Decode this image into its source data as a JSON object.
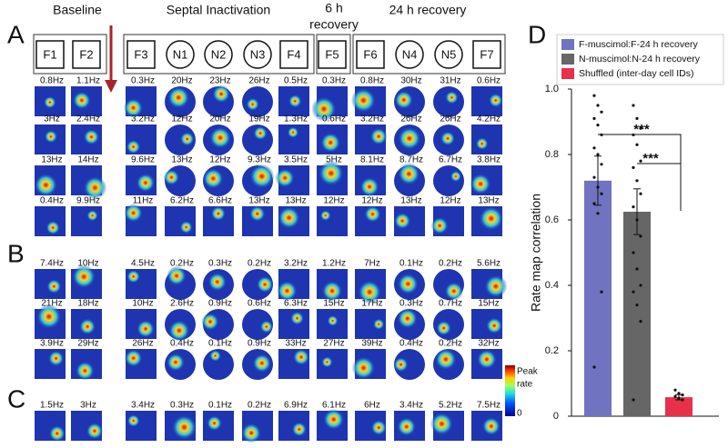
{
  "figure": {
    "panel_labels": [
      "A",
      "B",
      "C"
    ],
    "groups": [
      {
        "label_lines": [
          "Baseline"
        ]
      },
      {
        "label_lines": [
          "Septal Inactivation"
        ]
      },
      {
        "label_lines": [
          "6 h",
          "recovery"
        ]
      },
      {
        "label_lines": [
          "24 h recovery"
        ]
      }
    ],
    "sessions": [
      "F1",
      "F2",
      "F3",
      "N1",
      "N2",
      "N3",
      "F4",
      "F5",
      "F6",
      "N4",
      "N5",
      "F7"
    ],
    "rate_labels": [
      [
        "0.8Hz",
        "1.1Hz",
        "0.3Hz",
        "20Hz",
        "23Hz",
        "26Hz",
        "0.5Hz",
        "0.3Hz",
        "0.8Hz",
        "30Hz",
        "31Hz",
        "0.6Hz"
      ],
      [
        "3Hz",
        "2.4Hz",
        "3.2Hz",
        "12Hz",
        "20Hz",
        "19Hz",
        "1.3Hz",
        "0.6Hz",
        "3.2Hz",
        "26Hz",
        "26Hz",
        "4.2Hz"
      ],
      [
        "13Hz",
        "14Hz",
        "9.6Hz",
        "13Hz",
        "12Hz",
        "9.3Hz",
        "3.5Hz",
        "5Hz",
        "8.1Hz",
        "8.7Hz",
        "6.7Hz",
        "3.8Hz"
      ],
      [
        "0.4Hz",
        "9.9Hz",
        "11Hz",
        "6.2Hz",
        "6.6Hz",
        "13Hz",
        "13Hz",
        "12Hz",
        "12Hz",
        "13Hz",
        "12Hz",
        "13Hz"
      ],
      [
        "7.4Hz",
        "10Hz",
        "4.5Hz",
        "0.2Hz",
        "0.3Hz",
        "0.2Hz",
        "3.2Hz",
        "1.2Hz",
        "7Hz",
        "0.1Hz",
        "0.2Hz",
        "5.6Hz"
      ],
      [
        "21Hz",
        "18Hz",
        "10Hz",
        "2.6Hz",
        "0.9Hz",
        "0.6Hz",
        "6.3Hz",
        "15Hz",
        "17Hz",
        "0.3Hz",
        "0.7Hz",
        "15Hz"
      ],
      [
        "3.9Hz",
        "29Hz",
        "26Hz",
        "0.4Hz",
        "0.1Hz",
        "0.9Hz",
        "33Hz",
        "27Hz",
        "39Hz",
        "0.4Hz",
        "0.2Hz",
        "32Hz"
      ],
      [
        "1.5Hz",
        "3Hz",
        "3.4Hz",
        "0.3Hz",
        "0.1Hz",
        "0.2Hz",
        "6.9Hz",
        "6.1Hz",
        "6Hz",
        "3.4Hz",
        "5.2Hz",
        "7.5Hz"
      ]
    ],
    "colorbar": {
      "top_lines": [
        "Peak",
        "rate"
      ],
      "bottom": "0"
    }
  },
  "chart_data": {
    "type": "bar",
    "panel_label": "D",
    "y_label": "Rate map correlation",
    "ylim": [
      0,
      1
    ],
    "yticks": [
      0,
      0.2,
      0.4,
      0.6,
      0.8,
      {
        "value": 1,
        "label": "1.0"
      }
    ],
    "significance": [
      "***",
      "***"
    ],
    "series": [
      {
        "name": "F-muscimol:F-24 h recovery",
        "color": "#6f73c0",
        "values": [
          0.72
        ],
        "errors": [
          0.075
        ],
        "points": [
          0.98,
          0.95,
          0.93,
          0.91,
          0.89,
          0.86,
          0.82,
          0.8,
          0.77,
          0.73,
          0.7,
          0.68,
          0.65,
          0.62,
          0.38,
          0.15
        ]
      },
      {
        "name": "N-muscimol:N-24 h recovery",
        "color": "#666666",
        "values": [
          0.625
        ],
        "errors": [
          0.07
        ],
        "points": [
          0.95,
          0.91,
          0.88,
          0.86,
          0.83,
          0.78,
          0.76,
          0.72,
          0.68,
          0.64,
          0.6,
          0.55,
          0.5,
          0.45,
          0.4,
          0.38,
          0.34,
          0.29,
          0.05
        ]
      },
      {
        "name": "Shuffled (inter-day cell IDs)",
        "color": "#e8304a",
        "values": [
          0.058
        ],
        "errors": [
          0.008
        ],
        "points": [
          0.08,
          0.07,
          0.065,
          0.06,
          0.055,
          0.05
        ]
      }
    ]
  }
}
